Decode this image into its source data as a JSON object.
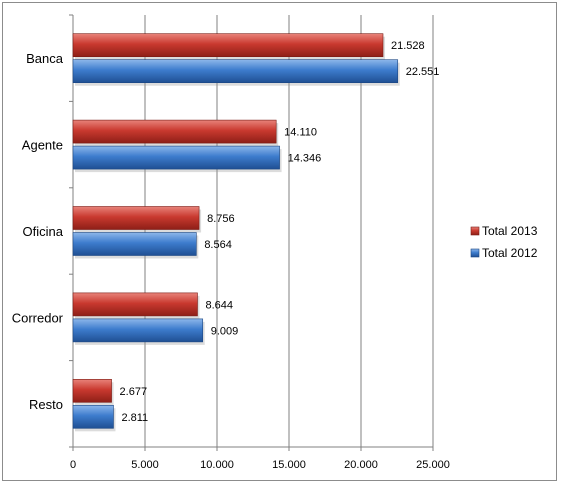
{
  "chart_data": {
    "type": "bar",
    "orientation": "horizontal",
    "categories": [
      "Banca",
      "Agente",
      "Oficina",
      "Corredor",
      "Resto"
    ],
    "series": [
      {
        "name": "Total 2013",
        "values": [
          21528,
          14110,
          8756,
          8644,
          2677
        ],
        "labels": [
          "21.528",
          "14.110",
          "8.756",
          "8.644",
          "2.677"
        ],
        "color": "#c0392b"
      },
      {
        "name": "Total 2012",
        "values": [
          22551,
          14346,
          8564,
          9009,
          2811
        ],
        "labels": [
          "22.551",
          "14.346",
          "8.564",
          "9.009",
          "2.811"
        ],
        "color": "#3a78c8"
      }
    ],
    "xlim": [
      0,
      25000
    ],
    "xticks": [
      0,
      5000,
      10000,
      15000,
      20000,
      25000
    ],
    "xtick_labels": [
      "0",
      "5.000",
      "10.000",
      "15.000",
      "20.000",
      "25.000"
    ],
    "grid": "vertical",
    "legend_position": "right"
  }
}
